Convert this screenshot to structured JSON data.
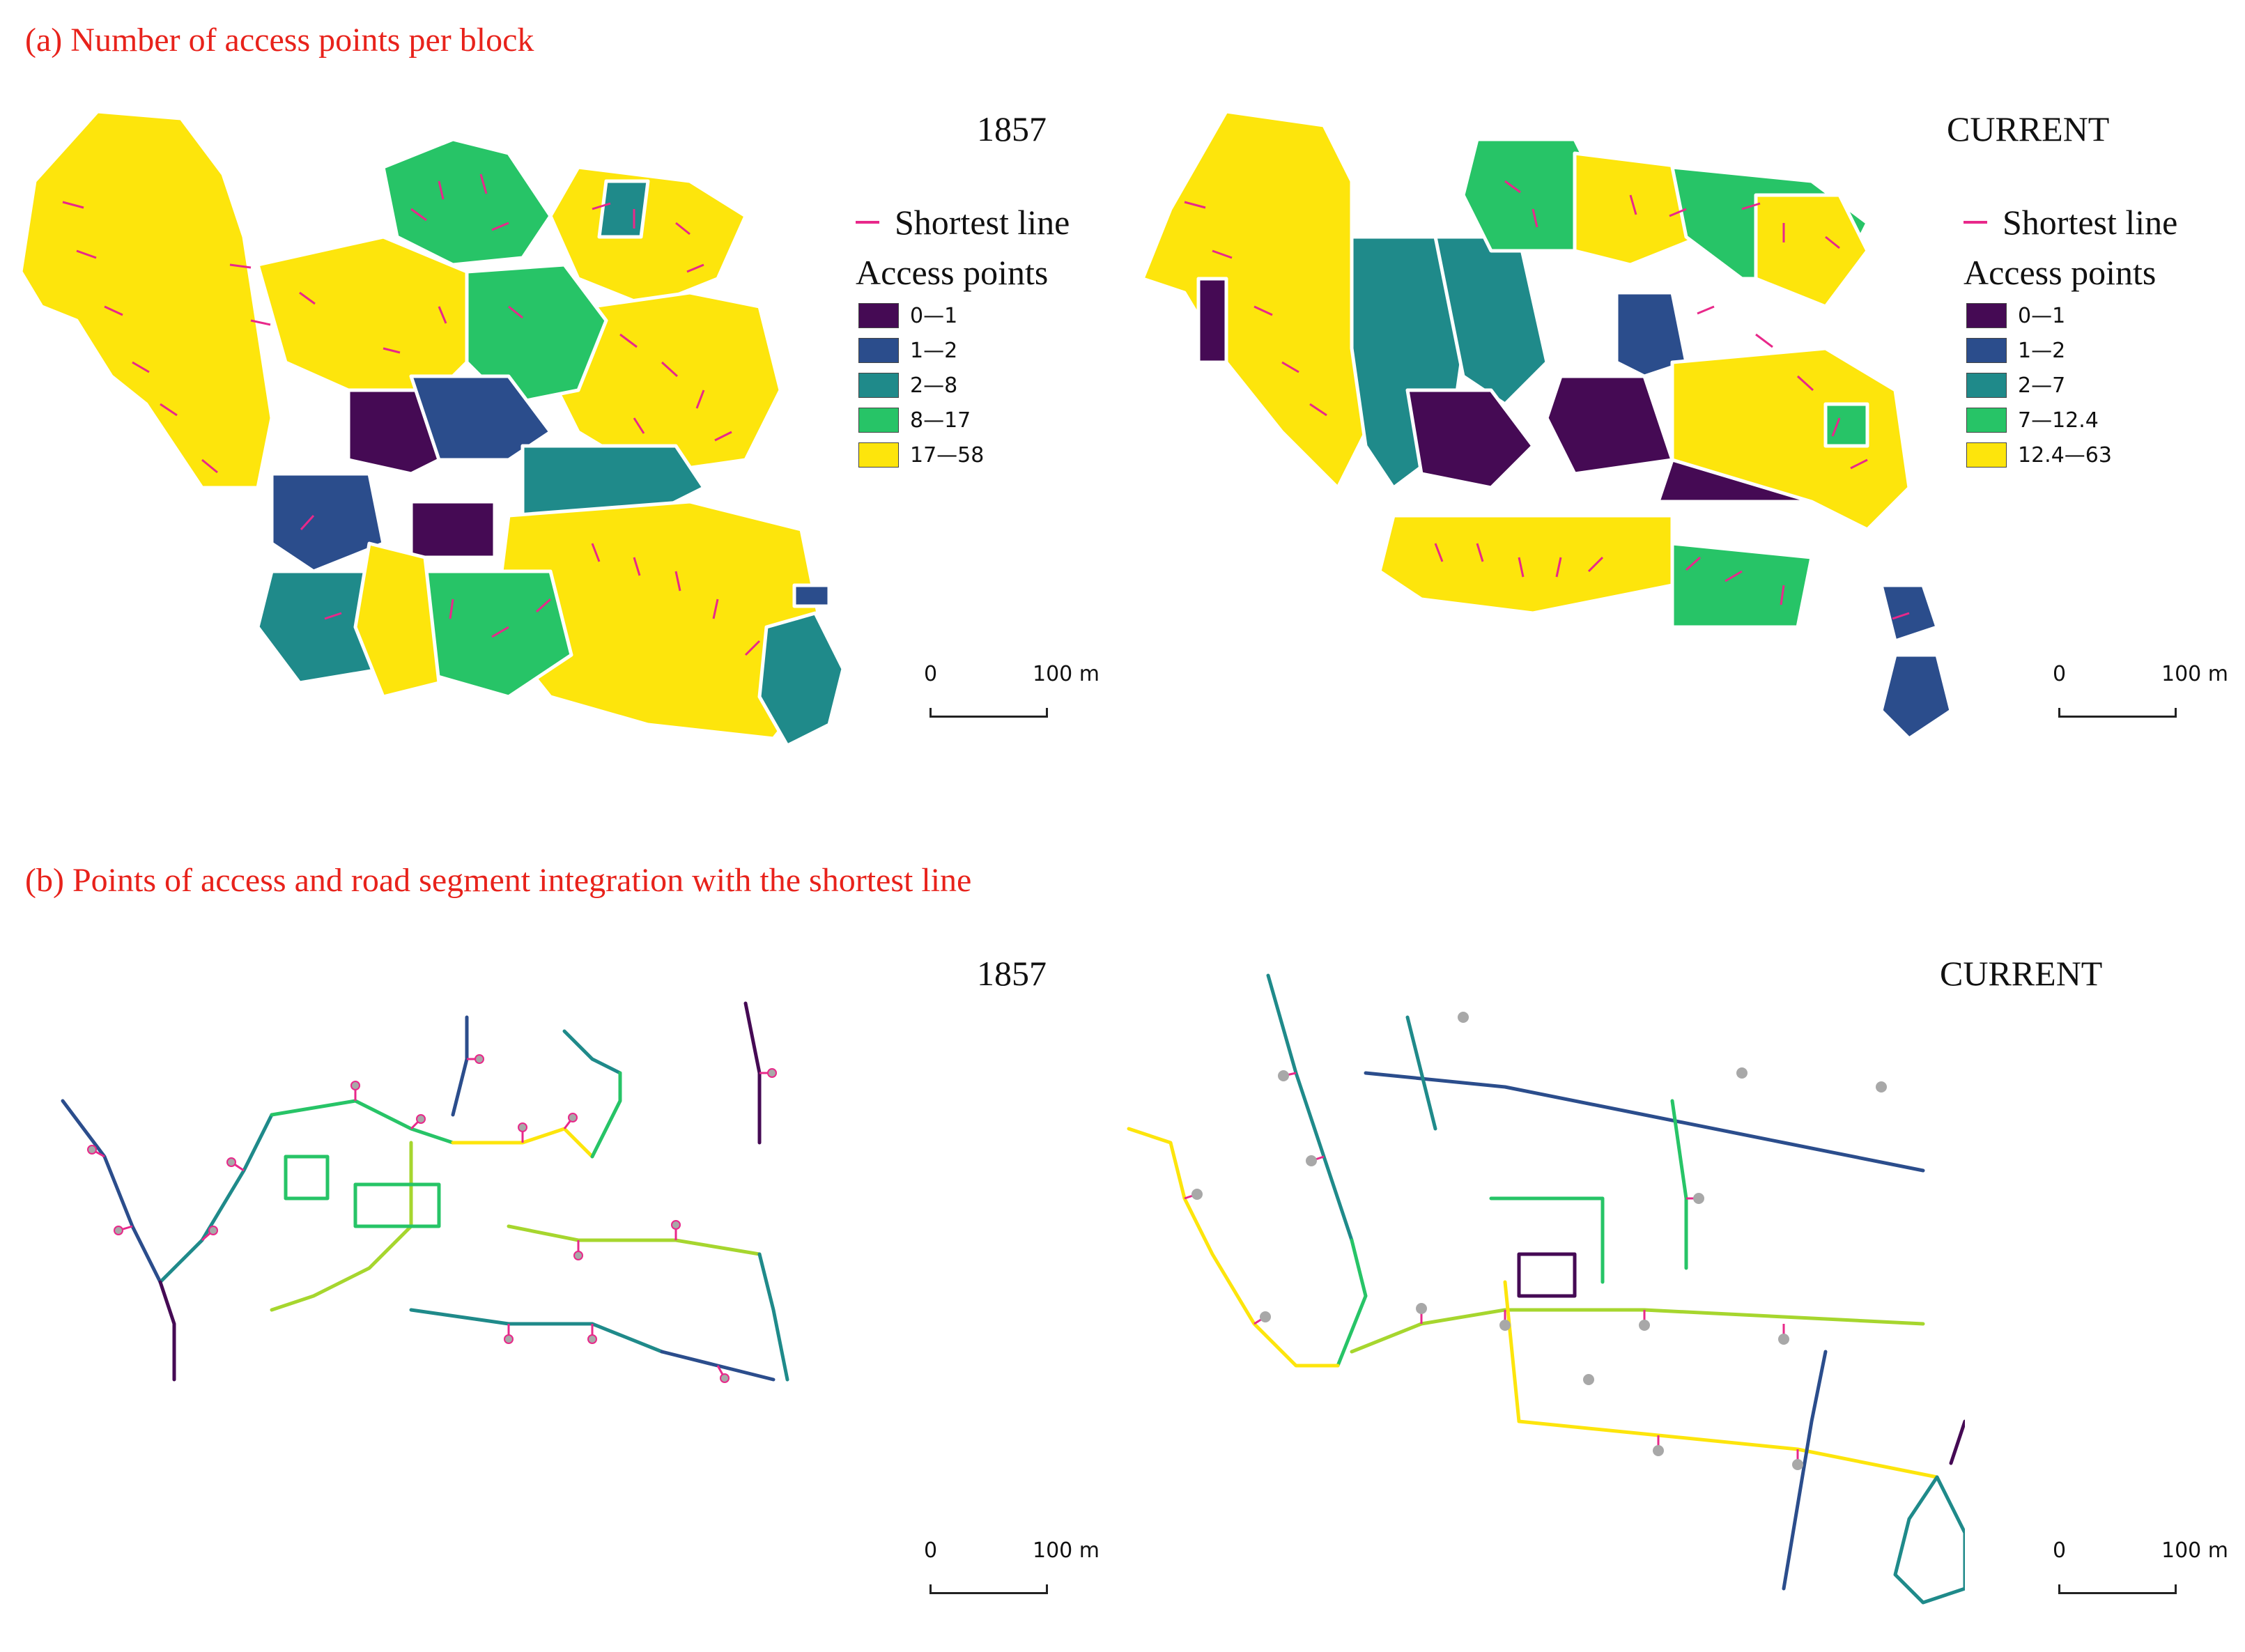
{
  "panel_a": {
    "title": "(a) Number of access points per block",
    "maps": [
      {
        "year_label": "1857",
        "legend": {
          "line_label": "Shortest line",
          "heading": "Access points",
          "classes": [
            {
              "label": "0—1",
              "color": "#450a54"
            },
            {
              "label": "1—2",
              "color": "#2b4d8c"
            },
            {
              "label": "2—8",
              "color": "#1f8a8a"
            },
            {
              "label": "8—17",
              "color": "#27c467"
            },
            {
              "label": "17—58",
              "color": "#fde50c"
            }
          ]
        },
        "scale": {
          "zero": "0",
          "label": "100 m"
        }
      },
      {
        "year_label": "CURRENT",
        "legend": {
          "line_label": "Shortest line",
          "heading": "Access points",
          "classes": [
            {
              "label": "0—1",
              "color": "#450a54"
            },
            {
              "label": "1—2",
              "color": "#2b4d8c"
            },
            {
              "label": "2—7",
              "color": "#1f8a8a"
            },
            {
              "label": "7—12.4",
              "color": "#27c467"
            },
            {
              "label": "12.4—63",
              "color": "#fde50c"
            }
          ]
        },
        "scale": {
          "zero": "0",
          "label": "100 m"
        }
      }
    ]
  },
  "panel_b": {
    "title": "(b) Points of access and road segment integration with the shortest line",
    "maps": [
      {
        "year_label": "1857",
        "scale": {
          "zero": "0",
          "label": "100 m"
        }
      },
      {
        "year_label": "CURRENT",
        "scale": {
          "zero": "0",
          "label": "100 m"
        }
      }
    ]
  },
  "colors": {
    "shortest_line": "#e8288a",
    "access_point": "#a8a8a8",
    "title_red": "#e8221b",
    "road_gradient": [
      "#450a54",
      "#2b4d8c",
      "#1f8a8a",
      "#27c467",
      "#a6d62e",
      "#fde50c"
    ]
  }
}
